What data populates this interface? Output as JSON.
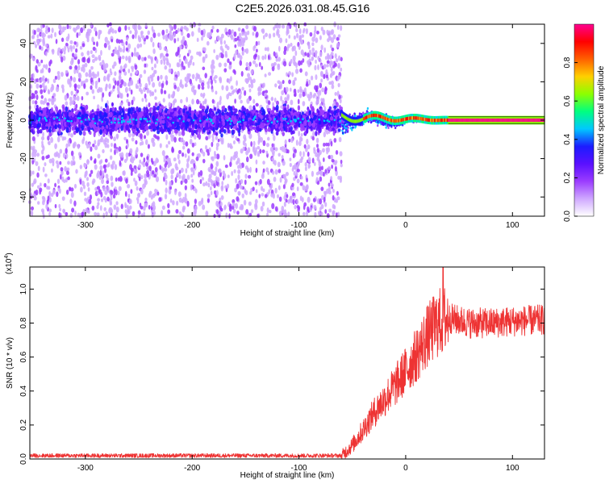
{
  "title": "C2E5.2026.031.08.45.G16",
  "chart_data": [
    {
      "type": "heatmap",
      "xlabel": "Height of straight line (km)",
      "ylabel": "Frequency (Hz)",
      "xlim": [
        -352,
        130
      ],
      "ylim": [
        -50,
        50
      ],
      "xticks": [
        -300,
        -200,
        -100,
        0,
        100
      ],
      "xtick_labels": [
        "-300",
        "-200",
        "-100",
        "0",
        "100"
      ],
      "yticks": [
        -40,
        -20,
        0,
        20,
        40
      ],
      "ytick_labels": [
        "-40",
        "-20",
        "0",
        "20",
        "40"
      ],
      "colorbar": {
        "label": "Normalized spectral amplitude",
        "range": [
          0,
          1
        ],
        "ticks": [
          0.0,
          0.2,
          0.4,
          0.6,
          0.8
        ],
        "tick_labels": [
          "0.0",
          "0.2",
          "0.4",
          "0.6",
          "0.8"
        ],
        "colors": [
          "#ffffff",
          "#cfa8ff",
          "#9b3cff",
          "#5a10ff",
          "#1c1cff",
          "#00c8ff",
          "#00ff80",
          "#8cff00",
          "#ffd000",
          "#ff6000",
          "#ff0000",
          "#ff0090"
        ]
      },
      "description_points": {
        "noise_region_x": [
          -352,
          -60
        ],
        "noise_center_band_hz": [
          -8,
          8
        ],
        "signal_x": [
          -60,
          130
        ],
        "signal_freq_hz": 0
      }
    },
    {
      "type": "line",
      "xlabel": "Height of straight line (km)",
      "ylabel": "SNR (10 * v/v)",
      "y_multiplier": "(x10",
      "y_multiplier_exp": "4",
      "y_multiplier_close": ")",
      "xlim": [
        -352,
        130
      ],
      "ylim": [
        0,
        1.13
      ],
      "xticks": [
        -300,
        -200,
        -100,
        0,
        100
      ],
      "xtick_labels": [
        "-300",
        "-200",
        "-100",
        "0",
        "100"
      ],
      "yticks": [
        0.0,
        0.2,
        0.4,
        0.6,
        0.8,
        1.0
      ],
      "ytick_labels": [
        "0.0",
        "0.2",
        "0.4",
        "0.6",
        "0.8",
        "1.0"
      ],
      "color": "#ee3333",
      "trend": {
        "x": [
          -352,
          -60,
          -50,
          -40,
          -30,
          -20,
          -10,
          0,
          10,
          20,
          30,
          40,
          60,
          80,
          100,
          130
        ],
        "y": [
          0.02,
          0.02,
          0.08,
          0.17,
          0.27,
          0.35,
          0.43,
          0.52,
          0.61,
          0.72,
          0.8,
          0.83,
          0.8,
          0.8,
          0.81,
          0.82
        ]
      },
      "peak": {
        "x": 35,
        "y": 1.13
      }
    }
  ]
}
